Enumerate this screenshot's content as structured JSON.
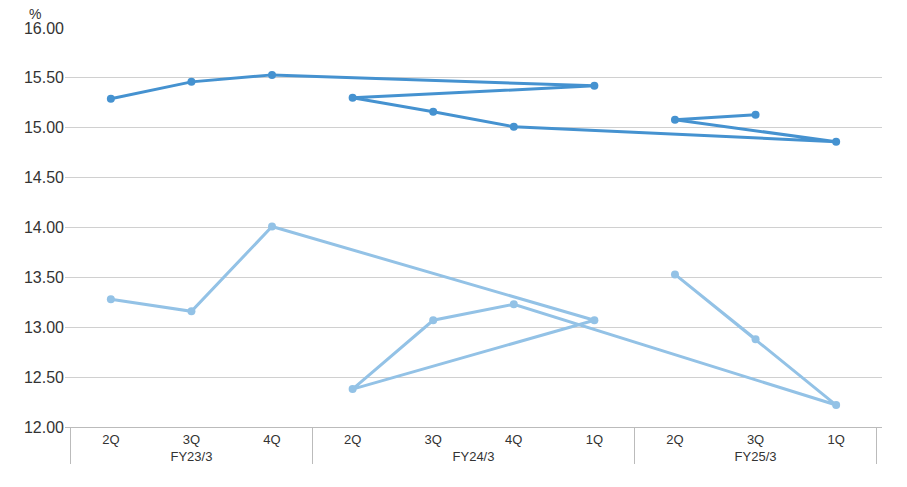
{
  "chart_data": {
    "type": "line",
    "ylabel": "%",
    "categories": [
      "2Q",
      "3Q",
      "4Q",
      "1Q",
      "2Q",
      "3Q",
      "4Q",
      "1Q",
      "2Q",
      "3Q"
    ],
    "groups": [
      "FY23/3",
      "FY23/3",
      "FY23/3",
      "FY24/3",
      "FY24/3",
      "FY24/3",
      "FY24/3",
      "FY25/3",
      "FY25/3",
      "FY25/3"
    ],
    "series": [
      {
        "color": "#4592d0",
        "marker": "circle",
        "line_style": "solid",
        "values": [
          15.29,
          15.46,
          15.53,
          15.42,
          15.3,
          15.16,
          15.01,
          14.86,
          15.08,
          15.13
        ]
      },
      {
        "color": "#93c2e6",
        "marker": "circle",
        "line_style": "solid",
        "values": [
          13.28,
          13.16,
          14.01,
          13.07,
          12.38,
          13.07,
          13.23,
          12.22,
          13.53,
          12.88
        ]
      }
    ],
    "ylim": [
      12,
      16
    ],
    "yticks": [
      {
        "value": 12,
        "label": "12.00"
      },
      {
        "value": 12.5,
        "label": "12.50"
      },
      {
        "value": 13,
        "label": "13.00"
      },
      {
        "value": 13.5,
        "label": "13.50"
      },
      {
        "value": 14,
        "label": "14.00"
      },
      {
        "value": 14.5,
        "label": "14.50"
      },
      {
        "value": 15,
        "label": "15.00"
      },
      {
        "value": 15.5,
        "label": "15.50"
      },
      {
        "value": 16,
        "label": "16.00"
      }
    ],
    "grid": true
  }
}
